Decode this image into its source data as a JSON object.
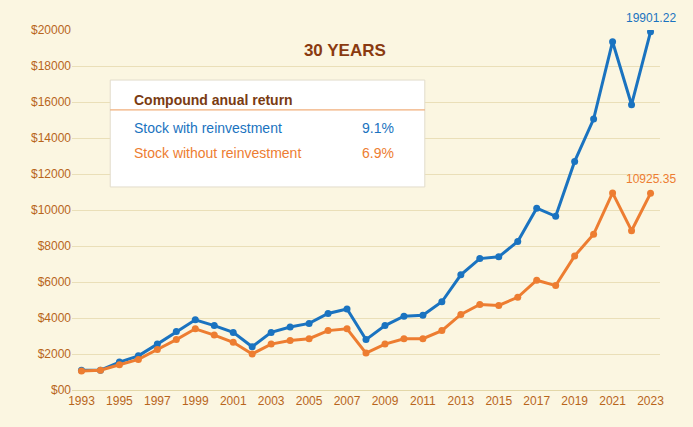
{
  "chart_data": {
    "type": "line",
    "title": "30 YEARS",
    "legend_title": "Compound anual return",
    "x": [
      1993,
      1994,
      1995,
      1996,
      1997,
      1998,
      1999,
      2000,
      2001,
      2002,
      2003,
      2004,
      2005,
      2006,
      2007,
      2008,
      2009,
      2010,
      2011,
      2012,
      2013,
      2014,
      2015,
      2016,
      2017,
      2018,
      2019,
      2020,
      2021,
      2022,
      2023
    ],
    "series": [
      {
        "name": "Stock with reinvestment",
        "color": "#1a73c0",
        "marker": "circle",
        "compound_annual_return": {
          "value": 9.1,
          "label": "9.1%"
        },
        "values": [
          1100,
          1100,
          1550,
          1900,
          2550,
          3250,
          3900,
          3580,
          3200,
          2400,
          3200,
          3500,
          3700,
          4250,
          4500,
          2800,
          3580,
          4100,
          4150,
          4900,
          6400,
          7300,
          7400,
          8250,
          10100,
          9650,
          12700,
          15050,
          19350,
          15850,
          19901.22
        ]
      },
      {
        "name": "Stock without reinvestment",
        "color": "#ed7d31",
        "marker": "circle",
        "compound_annual_return": {
          "value": 6.9,
          "label": "6.9%"
        },
        "values": [
          1050,
          1100,
          1400,
          1700,
          2250,
          2800,
          3400,
          3050,
          2650,
          2000,
          2550,
          2750,
          2850,
          3300,
          3400,
          2050,
          2550,
          2850,
          2850,
          3300,
          4200,
          4750,
          4700,
          5150,
          6100,
          5800,
          7450,
          8650,
          10950,
          8850,
          10925.35
        ]
      }
    ],
    "annotations": [
      {
        "text": "19901.22",
        "x": 2023,
        "y": 19901.22,
        "color": "#1a73c0"
      },
      {
        "text": "10925.35",
        "x": 2023,
        "y": 10925.35,
        "color": "#ed7d31"
      }
    ],
    "xlim": [
      1992.5,
      2023.5
    ],
    "xticks": [
      1993,
      1995,
      1997,
      1999,
      2001,
      2003,
      2005,
      2007,
      2009,
      2011,
      2013,
      2015,
      2017,
      2019,
      2021,
      2023
    ],
    "ylim": [
      0,
      20000
    ],
    "yticks": [
      {
        "value": 0,
        "label": "$00"
      },
      {
        "value": 2000,
        "label": "$2000"
      },
      {
        "value": 4000,
        "label": "$4000"
      },
      {
        "value": 6000,
        "label": "$6000"
      },
      {
        "value": 8000,
        "label": "$8000"
      },
      {
        "value": 10000,
        "label": "$10000"
      },
      {
        "value": 12000,
        "label": "$12000"
      },
      {
        "value": 14000,
        "label": "$14000"
      },
      {
        "value": 16000,
        "label": "$16000"
      },
      {
        "value": 18000,
        "label": "$18000"
      },
      {
        "value": 20000,
        "label": "$20000"
      }
    ],
    "grid": true
  }
}
